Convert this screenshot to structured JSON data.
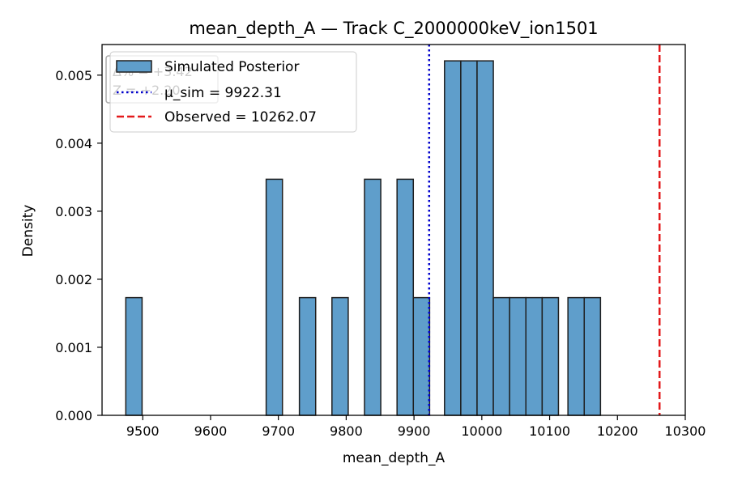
{
  "chart_data": {
    "type": "bar",
    "title": "mean_depth_A — Track C_2000000keV_ion1501",
    "xlabel": "mean_depth_A",
    "ylabel": "Density",
    "xlim": [
      9440,
      10300
    ],
    "ylim": [
      0,
      0.00545
    ],
    "x_ticks": [
      9500,
      9600,
      9700,
      9800,
      9900,
      10000,
      10100,
      10200,
      10300
    ],
    "y_ticks": [
      0.0,
      0.001,
      0.002,
      0.003,
      0.004,
      0.005
    ],
    "x_tick_labels": [
      "9500",
      "9600",
      "9700",
      "9800",
      "9900",
      "10000",
      "10100",
      "10200",
      "10300"
    ],
    "y_tick_labels": [
      "0.000",
      "0.001",
      "0.002",
      "0.003",
      "0.004",
      "0.005"
    ],
    "grid": false,
    "bar_color": "#5f9ecb",
    "bar_edge_color": "#1f1f1f",
    "bins": [
      {
        "x0": 9475,
        "x1": 9499,
        "density": 0.00173
      },
      {
        "x0": 9682,
        "x1": 9706,
        "density": 0.00347
      },
      {
        "x0": 9731,
        "x1": 9755,
        "density": 0.00173
      },
      {
        "x0": 9779,
        "x1": 9803,
        "density": 0.00173
      },
      {
        "x0": 9827,
        "x1": 9851,
        "density": 0.00347
      },
      {
        "x0": 9875,
        "x1": 9899,
        "density": 0.00347
      },
      {
        "x0": 9899,
        "x1": 9923,
        "density": 0.00173
      },
      {
        "x0": 9945,
        "x1": 9969,
        "density": 0.00521
      },
      {
        "x0": 9969,
        "x1": 9993,
        "density": 0.00521
      },
      {
        "x0": 9993,
        "x1": 10017,
        "density": 0.00521
      },
      {
        "x0": 10017,
        "x1": 10041,
        "density": 0.00173
      },
      {
        "x0": 10041,
        "x1": 10065,
        "density": 0.00173
      },
      {
        "x0": 10065,
        "x1": 10089,
        "density": 0.00173
      },
      {
        "x0": 10089,
        "x1": 10113,
        "density": 0.00173
      },
      {
        "x0": 10127,
        "x1": 10151,
        "density": 0.00173
      },
      {
        "x0": 10151,
        "x1": 10175,
        "density": 0.00173
      }
    ],
    "vlines": [
      {
        "name": "mu-sim-line",
        "x": 9922.31,
        "color": "#0000cc",
        "style": "dotted"
      },
      {
        "name": "observed-line",
        "x": 10262.07,
        "color": "#e31a1c",
        "style": "dashed"
      }
    ],
    "legend": {
      "placement": "top-left",
      "entries": [
        {
          "label": "Simulated Posterior",
          "kind": "patch"
        },
        {
          "label": "μ_sim = 9922.31",
          "kind": "dotted",
          "color": "#0000cc"
        },
        {
          "label": "Observed = 10262.07",
          "kind": "dashed",
          "color": "#e31a1c"
        }
      ]
    },
    "annotation": {
      "placement": "top-left",
      "lines": [
        "Δ% = +3.42",
        "Z = +2.20"
      ]
    }
  }
}
